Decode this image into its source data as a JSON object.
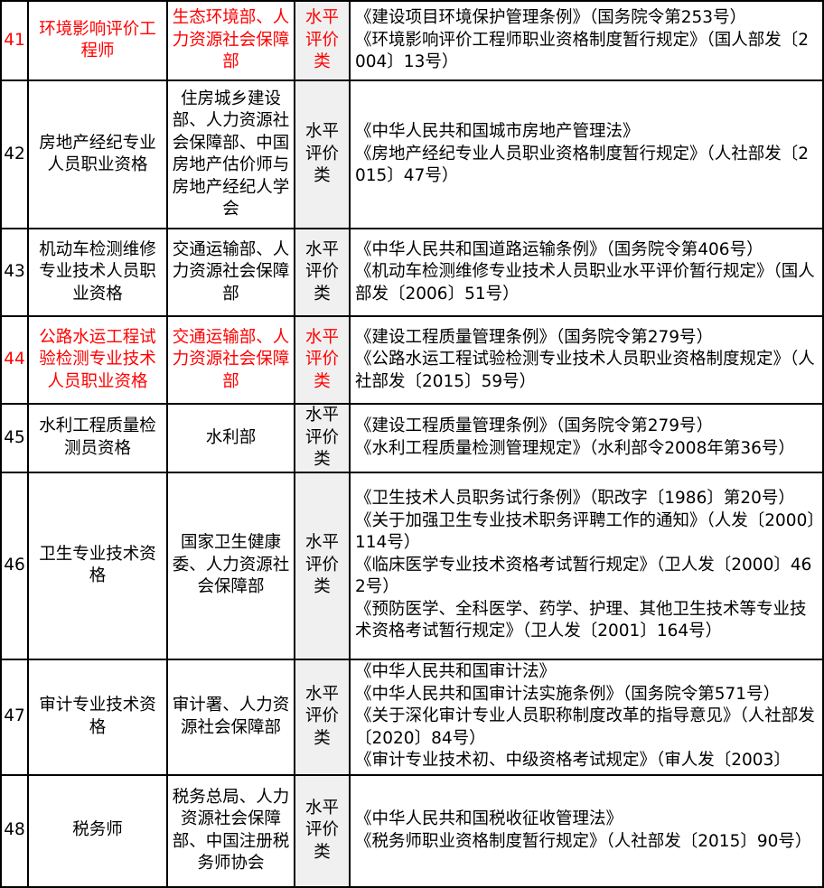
{
  "table": {
    "rows": [
      {
        "no": "41",
        "name": "环境影响评价工程师",
        "dept": "生态环境部、人力资源社会保障部",
        "type": "水平评价类",
        "highlight": true,
        "basis": [
          "《建设项目环境保护管理条例》（国务院令第253号）",
          "《环境影响评价工程师职业资格制度暂行规定》（国人部发〔2004〕13号）"
        ]
      },
      {
        "no": "42",
        "name": "房地产经纪专业人员职业资格",
        "dept": "住房城乡建设部、人力资源社会保障部、中国房地产估价师与房地产经纪人学会",
        "type": "水平评价类",
        "highlight": false,
        "basis": [
          "《中华人民共和国城市房地产管理法》",
          "《房地产经纪专业人员职业资格制度暂行规定》（人社部发〔2015〕47号）"
        ]
      },
      {
        "no": "43",
        "name": "机动车检测维修专业技术人员职业资格",
        "dept": "交通运输部、人力资源社会保障部",
        "type": "水平评价类",
        "highlight": false,
        "basis": [
          "《中华人民共和国道路运输条例》（国务院令第406号）",
          "《机动车检测维修专业技术人员职业水平评价暂行规定》（国人部发〔2006〕51号）"
        ]
      },
      {
        "no": "44",
        "name": "公路水运工程试验检测专业技术人员职业资格",
        "dept": "交通运输部、人力资源社会保障部",
        "type": "水平评价类",
        "highlight": true,
        "basis": [
          "《建设工程质量管理条例》（国务院令第279号）",
          "《公路水运工程试验检测专业技术人员职业资格制度规定》（人社部发〔2015〕59号）"
        ]
      },
      {
        "no": "45",
        "name": "水利工程质量检测员资格",
        "dept": "水利部",
        "type": "水平评价类",
        "highlight": false,
        "basis": [
          "《建设工程质量管理条例》（国务院令第279号）",
          "《水利工程质量检测管理规定》（水利部令2008年第36号）"
        ]
      },
      {
        "no": "46",
        "name": "卫生专业技术资格",
        "dept": "国家卫生健康委、人力资源社会保障部",
        "type": "水平评价类",
        "highlight": false,
        "basis": [
          "《卫生技术人员职务试行条例》（职改字〔1986〕第20号）",
          "《关于加强卫生专业技术职务评聘工作的通知》（人发〔2000〕114号）",
          "《临床医学专业技术资格考试暂行规定》（卫人发〔2000〕462号）",
          "《预防医学、全科医学、药学、护理、其他卫生技术等专业技术资格考试暂行规定》（卫人发〔2001〕164号）"
        ]
      },
      {
        "no": "47",
        "name": "审计专业技术资格",
        "dept": "审计署、人力资源社会保障部",
        "type": "水平评价类",
        "highlight": false,
        "basis": [
          "《中华人民共和国审计法》",
          "《中华人民共和国审计法实施条例》（国务院令第571号）",
          "《关于深化审计专业人员职称制度改革的指导意见》（人社部发〔2020〕84号）",
          "《审计专业技术初、中级资格考试规定》（审人发〔2003〕"
        ]
      },
      {
        "no": "48",
        "name": "税务师",
        "dept": "税务总局、人力资源社会保障部、中国注册税务师协会",
        "type": "水平评价类",
        "highlight": false,
        "basis": [
          "《中华人民共和国税收征收管理法》",
          "《税务师职业资格制度暂行规定》（人社部发〔2015〕90号）"
        ]
      }
    ]
  },
  "colors": {
    "highlight_text": "#ff0000",
    "type_column_bg": "#f0f0f0",
    "border": "#000000"
  }
}
